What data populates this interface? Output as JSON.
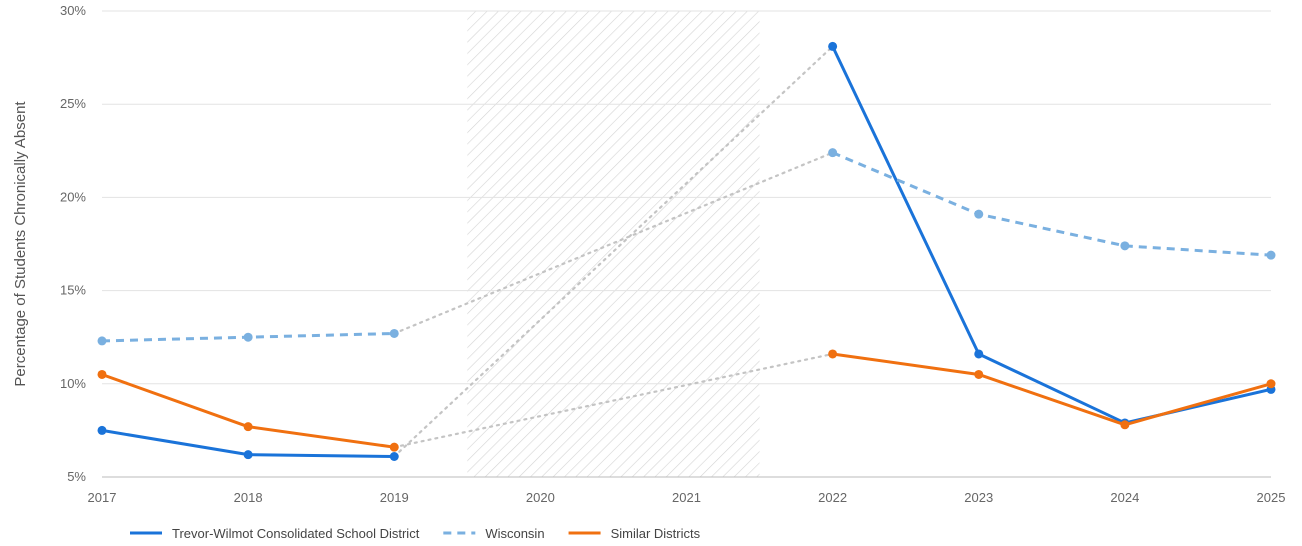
{
  "chart_data": {
    "type": "line",
    "ylabel": "Percentage of Students Chronically Absent",
    "xlabel": "",
    "ylim": [
      5,
      30
    ],
    "y_ticks": [
      5,
      10,
      15,
      20,
      25,
      30
    ],
    "y_tick_labels": [
      "5%",
      "10%",
      "15%",
      "20%",
      "25%",
      "30%"
    ],
    "categories": [
      "2017",
      "2018",
      "2019",
      "2020",
      "2021",
      "2022",
      "2023",
      "2024",
      "2025"
    ],
    "grid": "horizontal",
    "shaded_region": {
      "from": "2020",
      "to": "2021",
      "pattern": "diagonal-hatch"
    },
    "gap_connector_style": "dotted-gray",
    "legend_position": "bottom-left",
    "series": [
      {
        "name": "Trevor-Wilmot Consolidated School District",
        "color": "#1a73d9",
        "style": "solid",
        "values": [
          7.5,
          6.2,
          6.1,
          null,
          null,
          28.1,
          11.6,
          7.9,
          9.7
        ]
      },
      {
        "name": "Wisconsin",
        "color": "#7ab0e0",
        "style": "dashed",
        "values": [
          12.3,
          12.5,
          12.7,
          null,
          null,
          22.4,
          19.1,
          17.4,
          16.9
        ]
      },
      {
        "name": "Similar Districts",
        "color": "#f07010",
        "style": "solid",
        "values": [
          10.5,
          7.7,
          6.6,
          null,
          null,
          11.6,
          10.5,
          7.8,
          10.0
        ]
      }
    ]
  }
}
